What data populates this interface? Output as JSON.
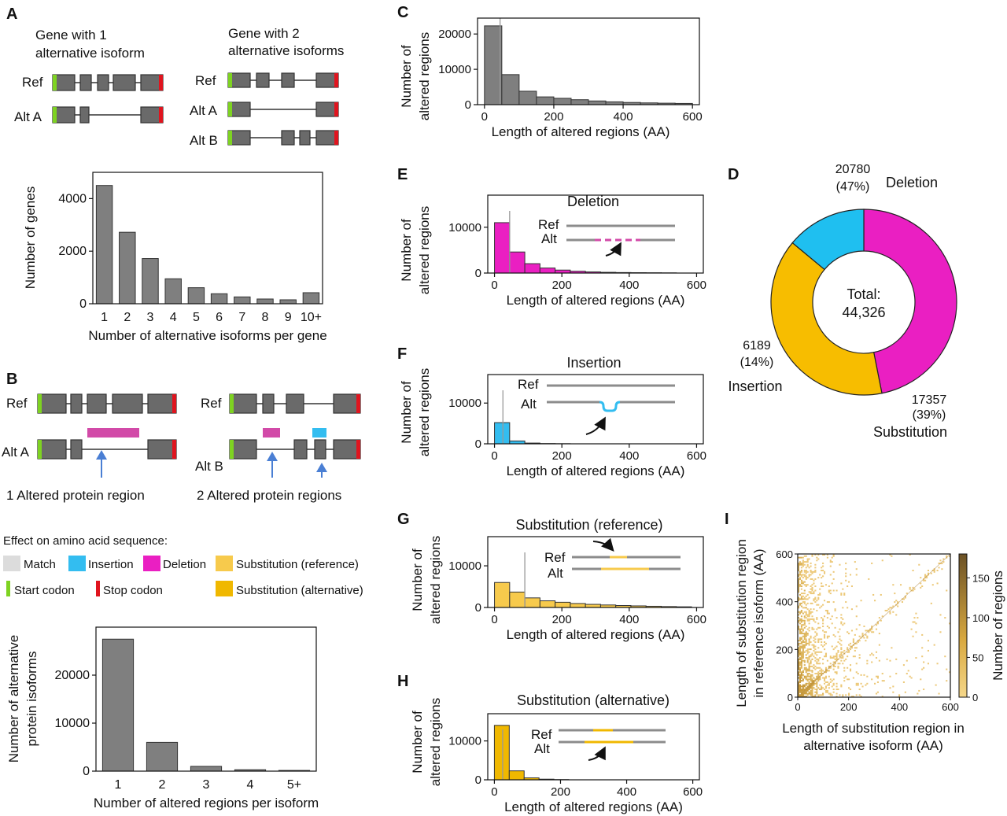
{
  "panels": {
    "A": "A",
    "B": "B",
    "C": "C",
    "D": "D",
    "E": "E",
    "F": "F",
    "G": "G",
    "H": "H",
    "I": "I"
  },
  "diagram_a": {
    "left_title": [
      "Gene with 1",
      "alternative isoform"
    ],
    "right_title": [
      "Gene with 2",
      "alternative isoforms"
    ],
    "left_rows": [
      "Ref",
      "Alt A"
    ],
    "right_rows": [
      "Ref",
      "Alt A",
      "Alt B"
    ]
  },
  "diagram_b": {
    "left_rows": [
      "Ref",
      "Alt A"
    ],
    "right_rows": [
      "Ref",
      "Alt B"
    ],
    "left_caption": "1 Altered protein region",
    "right_caption": "2 Altered protein regions"
  },
  "legend": {
    "title": "Effect on amino acid sequence:",
    "items": [
      {
        "label": "Match",
        "color": "#dcdcdc"
      },
      {
        "label": "Insertion",
        "color": "#33bdf0"
      },
      {
        "label": "Deletion",
        "color": "#ea1fc2"
      },
      {
        "label": "Substitution (reference)",
        "color": "#f7ca4c"
      },
      {
        "label": "Start codon",
        "color": "#7ed321"
      },
      {
        "label": "Stop codon",
        "color": "#e0141e"
      },
      {
        "label": "Substitution (alternative)",
        "color": "#f0b800"
      }
    ]
  },
  "colors": {
    "grey": "#7f7f7f",
    "deletion": "#ea1fc2",
    "insertion": "#33bdf0",
    "sub_ref": "#f7ca4c",
    "sub_alt": "#f0b800",
    "start": "#7ed321",
    "stop": "#e0141e"
  },
  "mini": {
    "ref": "Ref",
    "alt": "Alt"
  },
  "chart_data": [
    {
      "id": "A",
      "type": "bar",
      "categories": [
        "1",
        "2",
        "3",
        "4",
        "5",
        "6",
        "7",
        "8",
        "9",
        "10+"
      ],
      "values": [
        4500,
        2720,
        1720,
        950,
        610,
        380,
        260,
        180,
        150,
        420
      ],
      "xlabel": "Number of alternative isoforms per gene",
      "ylabel": "Number of genes",
      "ylim": [
        0,
        5000
      ],
      "yticks": [
        0,
        2000,
        4000
      ],
      "color": "#7f7f7f"
    },
    {
      "id": "B",
      "type": "bar",
      "categories": [
        "1",
        "2",
        "3",
        "4",
        "5+"
      ],
      "values": [
        27500,
        6000,
        1000,
        300,
        150
      ],
      "xlabel": "Number of altered regions per isoform",
      "ylabel": "Number of alternative protein isoforms",
      "ylim": [
        0,
        30000
      ],
      "yticks": [
        0,
        10000,
        20000
      ],
      "color": "#7f7f7f"
    },
    {
      "id": "C",
      "type": "bar",
      "bin_width": 50,
      "values": [
        22300,
        8500,
        3800,
        2200,
        1800,
        1400,
        1050,
        800,
        620,
        500,
        420,
        350
      ],
      "median": 45,
      "xlabel": "Length of altered regions (AA)",
      "ylabel": "Number of altered regions",
      "xlim": [
        -20,
        620
      ],
      "ylim": [
        0,
        24500
      ],
      "xticks": [
        0,
        200,
        400,
        600
      ],
      "yticks": [
        0,
        10000,
        20000
      ],
      "color": "#7f7f7f"
    },
    {
      "id": "E",
      "type": "bar",
      "title": "Deletion",
      "bin_width": 45,
      "values": [
        11000,
        4600,
        2050,
        1100,
        650,
        400,
        250,
        160,
        110,
        80,
        60,
        40
      ],
      "median": 45,
      "xlabel": "Length of altered regions (AA)",
      "ylabel": "Number of altered regions",
      "xlim": [
        -20,
        620
      ],
      "ylim": [
        0,
        17000
      ],
      "xticks": [
        0,
        200,
        400,
        600
      ],
      "yticks": [
        0,
        10000
      ],
      "color": "#ea1fc2"
    },
    {
      "id": "F",
      "type": "bar",
      "title": "Insertion",
      "bin_width": 45,
      "values": [
        5200,
        700,
        180,
        60,
        30
      ],
      "median": 25,
      "xlabel": "Length of altered regions (AA)",
      "ylabel": "Number of altered regions",
      "xlim": [
        -20,
        620
      ],
      "ylim": [
        0,
        17000
      ],
      "xticks": [
        0,
        200,
        400,
        600
      ],
      "yticks": [
        0,
        10000
      ],
      "color": "#33bdf0"
    },
    {
      "id": "G",
      "type": "bar",
      "title": "Substitution (reference)",
      "bin_width": 45,
      "values": [
        6000,
        3700,
        2300,
        1600,
        1250,
        950,
        750,
        600,
        470,
        380,
        290,
        220,
        160
      ],
      "median": 90,
      "xlabel": "Length of altered regions (AA)",
      "ylabel": "Number of altered regions",
      "xlim": [
        -20,
        620
      ],
      "ylim": [
        0,
        17000
      ],
      "xticks": [
        0,
        200,
        400,
        600
      ],
      "yticks": [
        0,
        10000
      ],
      "color": "#f7ca4c"
    },
    {
      "id": "H",
      "type": "bar",
      "title": "Substitution (alternative)",
      "bin_width": 45,
      "values": [
        14000,
        2300,
        500,
        160,
        60
      ],
      "median": 25,
      "xlabel": "Length of altered regions (AA)",
      "ylabel": "Number of altered regions",
      "xlim": [
        -20,
        620
      ],
      "ylim": [
        0,
        17000
      ],
      "xticks": [
        0,
        200,
        400,
        600
      ],
      "yticks": [
        0,
        10000
      ],
      "color": "#f0b800"
    },
    {
      "id": "D",
      "type": "pie",
      "slices": [
        {
          "name": "Deletion",
          "value": 20780,
          "pct": "(47%)",
          "color": "#ea1fc2"
        },
        {
          "name": "Substitution",
          "value": 17357,
          "pct": "(39%)",
          "color": "#f7bd00"
        },
        {
          "name": "Insertion",
          "value": 6189,
          "pct": "(14%)",
          "color": "#1fbff0"
        }
      ],
      "center_label": [
        "Total:",
        "44,326"
      ]
    },
    {
      "id": "I",
      "type": "heatmap",
      "xlabel": "Length of substitution region in alternative isoform (AA)",
      "ylabel": "Length of substitution region in reference isoform (AA)",
      "xlim": [
        0,
        600
      ],
      "ylim": [
        0,
        600
      ],
      "xticks": [
        0,
        200,
        400,
        600
      ],
      "yticks": [
        0,
        200,
        400,
        600
      ],
      "colorbar_label": "Number of regions",
      "colorbar_ticks": [
        0,
        50,
        100,
        150
      ],
      "colorbar_range": [
        0,
        180
      ]
    }
  ]
}
